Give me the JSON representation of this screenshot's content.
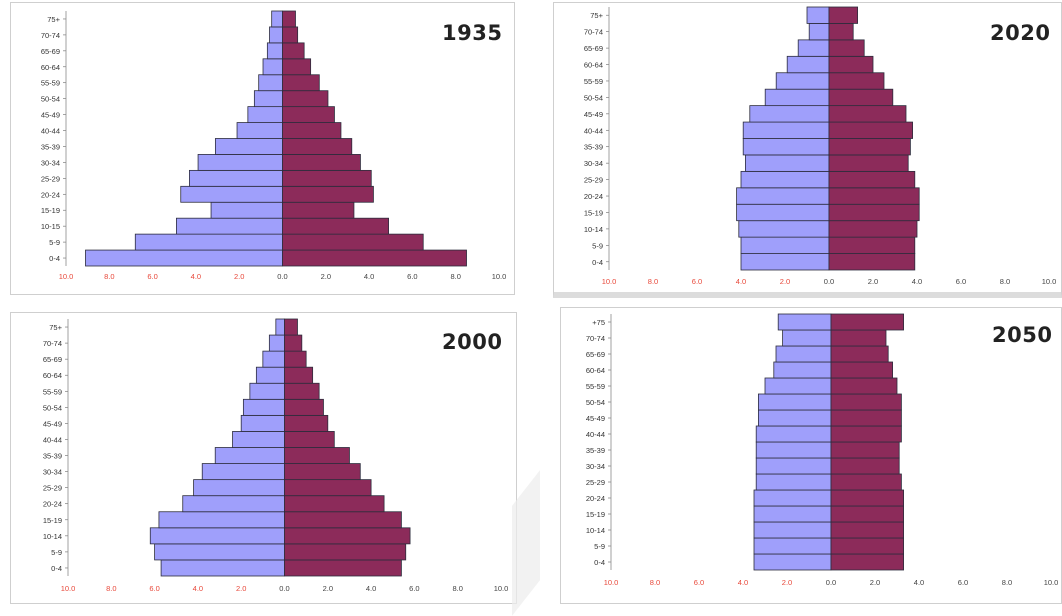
{
  "colors": {
    "male": "#9f9ffb",
    "female": "#8c2b5a",
    "bar_outline": "#2c2c3c",
    "negative_tick": "#e8483a",
    "positive_tick": "#444444",
    "grid": "#d6d6d6"
  },
  "age_groups_standard": [
    "0-4",
    "5-9",
    "10-15",
    "15-19",
    "20-24",
    "25-29",
    "30-34",
    "35-39",
    "40-44",
    "45-49",
    "50-54",
    "55-59",
    "60-64",
    "65-69",
    "70-74",
    "75+"
  ],
  "xaxis_ticks": [
    "10.0",
    "8.0",
    "6.0",
    "4.0",
    "2.0",
    "0.0",
    "2.0",
    "4.0",
    "6.0",
    "8.0",
    "10.0"
  ],
  "chart_data": [
    {
      "type": "bar",
      "orientation": "population-pyramid",
      "title": "1935",
      "categories": [
        "0-4",
        "5-9",
        "10-15",
        "15-19",
        "20-24",
        "25-29",
        "30-34",
        "35-39",
        "40-44",
        "45-49",
        "50-54",
        "55-59",
        "60-64",
        "65-69",
        "70-74",
        "75+"
      ],
      "series": [
        {
          "values": [
            9.1,
            6.8,
            4.9,
            3.3,
            4.7,
            4.3,
            3.9,
            3.1,
            2.1,
            1.6,
            1.3,
            1.1,
            0.9,
            0.7,
            0.6,
            0.5
          ]
        },
        {
          "values": [
            8.5,
            6.5,
            4.9,
            3.3,
            4.2,
            4.1,
            3.6,
            3.2,
            2.7,
            2.4,
            2.1,
            1.7,
            1.3,
            1.0,
            0.7,
            0.6
          ]
        }
      ],
      "xlim": [
        -10,
        10
      ]
    },
    {
      "type": "bar",
      "orientation": "population-pyramid",
      "title": "2020",
      "categories": [
        "0-4",
        "5-9",
        "10-14",
        "15-19",
        "20-24",
        "25-29",
        "30-34",
        "35-39",
        "40-44",
        "45-49",
        "50-54",
        "55-59",
        "60-64",
        "65-69",
        "70-74",
        "75+"
      ],
      "series": [
        {
          "values": [
            4.0,
            4.0,
            4.1,
            4.2,
            4.2,
            4.0,
            3.8,
            3.9,
            3.9,
            3.6,
            2.9,
            2.4,
            1.9,
            1.4,
            0.9,
            1.0
          ]
        },
        {
          "values": [
            3.9,
            3.9,
            4.0,
            4.1,
            4.1,
            3.9,
            3.6,
            3.7,
            3.8,
            3.5,
            2.9,
            2.5,
            2.0,
            1.6,
            1.1,
            1.3
          ]
        }
      ],
      "xlim": [
        -10,
        10
      ]
    },
    {
      "type": "bar",
      "orientation": "population-pyramid",
      "title": "2000",
      "categories": [
        "0-4",
        "5-9",
        "10-14",
        "15-19",
        "20-24",
        "25-29",
        "30-34",
        "35-39",
        "40-44",
        "45-49",
        "50-54",
        "55-59",
        "60-64",
        "65-69",
        "70-74",
        "75+"
      ],
      "series": [
        {
          "values": [
            5.7,
            6.0,
            6.2,
            5.8,
            4.7,
            4.2,
            3.8,
            3.2,
            2.4,
            2.0,
            1.9,
            1.6,
            1.3,
            1.0,
            0.7,
            0.4
          ]
        },
        {
          "values": [
            5.4,
            5.6,
            5.8,
            5.4,
            4.6,
            4.0,
            3.5,
            3.0,
            2.3,
            2.0,
            1.8,
            1.6,
            1.3,
            1.0,
            0.8,
            0.6
          ]
        }
      ],
      "xlim": [
        -10,
        10
      ]
    },
    {
      "type": "bar",
      "orientation": "population-pyramid",
      "title": "2050",
      "categories": [
        "0-4",
        "5-9",
        "10-14",
        "15-19",
        "20-24",
        "25-29",
        "30-34",
        "35-39",
        "40-44",
        "45-49",
        "50-54",
        "55-59",
        "60-64",
        "65-69",
        "70-74",
        "+75"
      ],
      "series": [
        {
          "values": [
            3.5,
            3.5,
            3.5,
            3.5,
            3.5,
            3.4,
            3.4,
            3.4,
            3.4,
            3.3,
            3.3,
            3.0,
            2.6,
            2.5,
            2.2,
            2.4
          ]
        },
        {
          "values": [
            3.3,
            3.3,
            3.3,
            3.3,
            3.3,
            3.2,
            3.1,
            3.1,
            3.2,
            3.2,
            3.2,
            3.0,
            2.8,
            2.6,
            2.5,
            3.3
          ]
        }
      ],
      "xlim": [
        -10,
        10
      ]
    }
  ]
}
